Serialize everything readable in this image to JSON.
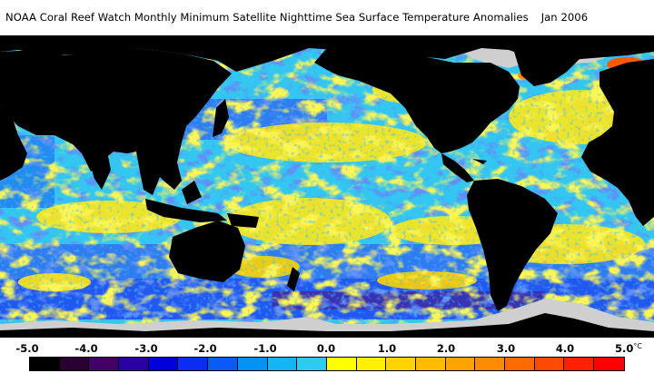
{
  "title": {
    "text": "NOAA Coral Reef Watch Monthly Minimum Satellite Nighttime Sea Surface Temperature Anomalies",
    "date": "Jan 2006"
  },
  "map": {
    "ocean_base_color": "#33c6f0",
    "land_color": "#000000",
    "ice_color": "#cfcfcf",
    "warm_anomaly_color": "#ffe818",
    "cool_anomaly_color": "#1e46f0"
  },
  "legend": {
    "ticks": [
      "-5.0",
      "-4.0",
      "-3.0",
      "-2.0",
      "-1.0",
      "0.0",
      "1.0",
      "2.0",
      "3.0",
      "4.0",
      "5.0"
    ],
    "unit": "°C",
    "colors": [
      "#000000",
      "#2a0033",
      "#430066",
      "#2a00a5",
      "#0000dc",
      "#0a2cf5",
      "#0a5af5",
      "#0093f5",
      "#12b6f7",
      "#2ccbf3",
      "#ffff00",
      "#fff000",
      "#ffd400",
      "#ffbb00",
      "#ffa300",
      "#ff8c00",
      "#ff6a00",
      "#ff4a00",
      "#ff2000",
      "#ff0000"
    ]
  }
}
